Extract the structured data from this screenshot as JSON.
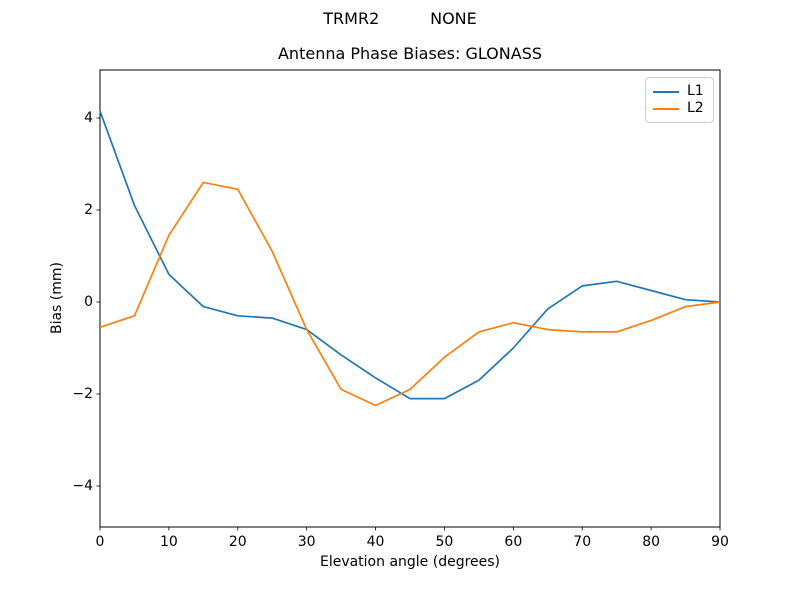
{
  "figure": {
    "suptitle": "TRMR2          NONE",
    "background": "#ffffff"
  },
  "chart_data": {
    "type": "line",
    "title": "Antenna Phase Biases: GLONASS",
    "xlabel": "Elevation angle (degrees)",
    "ylabel": "Bias (mm)",
    "x": [
      0,
      5,
      10,
      15,
      20,
      25,
      30,
      35,
      40,
      45,
      50,
      55,
      60,
      65,
      70,
      75,
      80,
      85,
      90
    ],
    "series": [
      {
        "name": "L1",
        "color": "#1f77b4",
        "values": [
          4.15,
          2.1,
          0.6,
          -0.1,
          -0.3,
          -0.35,
          -0.6,
          -1.15,
          -1.65,
          -2.1,
          -2.1,
          -1.7,
          -1.0,
          -0.15,
          0.35,
          0.45,
          0.25,
          0.05,
          0.0
        ]
      },
      {
        "name": "L2",
        "color": "#ff7f0e",
        "values": [
          -0.55,
          -0.3,
          1.45,
          2.6,
          2.45,
          1.1,
          -0.6,
          -1.9,
          -2.25,
          -1.9,
          -1.2,
          -0.65,
          -0.45,
          -0.6,
          -0.65,
          -0.65,
          -0.4,
          -0.1,
          0.0
        ]
      }
    ],
    "xlim": [
      0,
      90
    ],
    "ylim": [
      -5,
      5
    ],
    "x_ticks": [
      0,
      10,
      20,
      30,
      40,
      50,
      60,
      70,
      80,
      90
    ],
    "y_ticks": [
      -4,
      -2,
      0,
      2,
      4
    ],
    "grid": false,
    "legend_position": "upper right",
    "line_width": 1.7
  },
  "legend": {
    "entries": [
      {
        "label": "L1",
        "color": "#1f77b4"
      },
      {
        "label": "L2",
        "color": "#ff7f0e"
      }
    ]
  }
}
